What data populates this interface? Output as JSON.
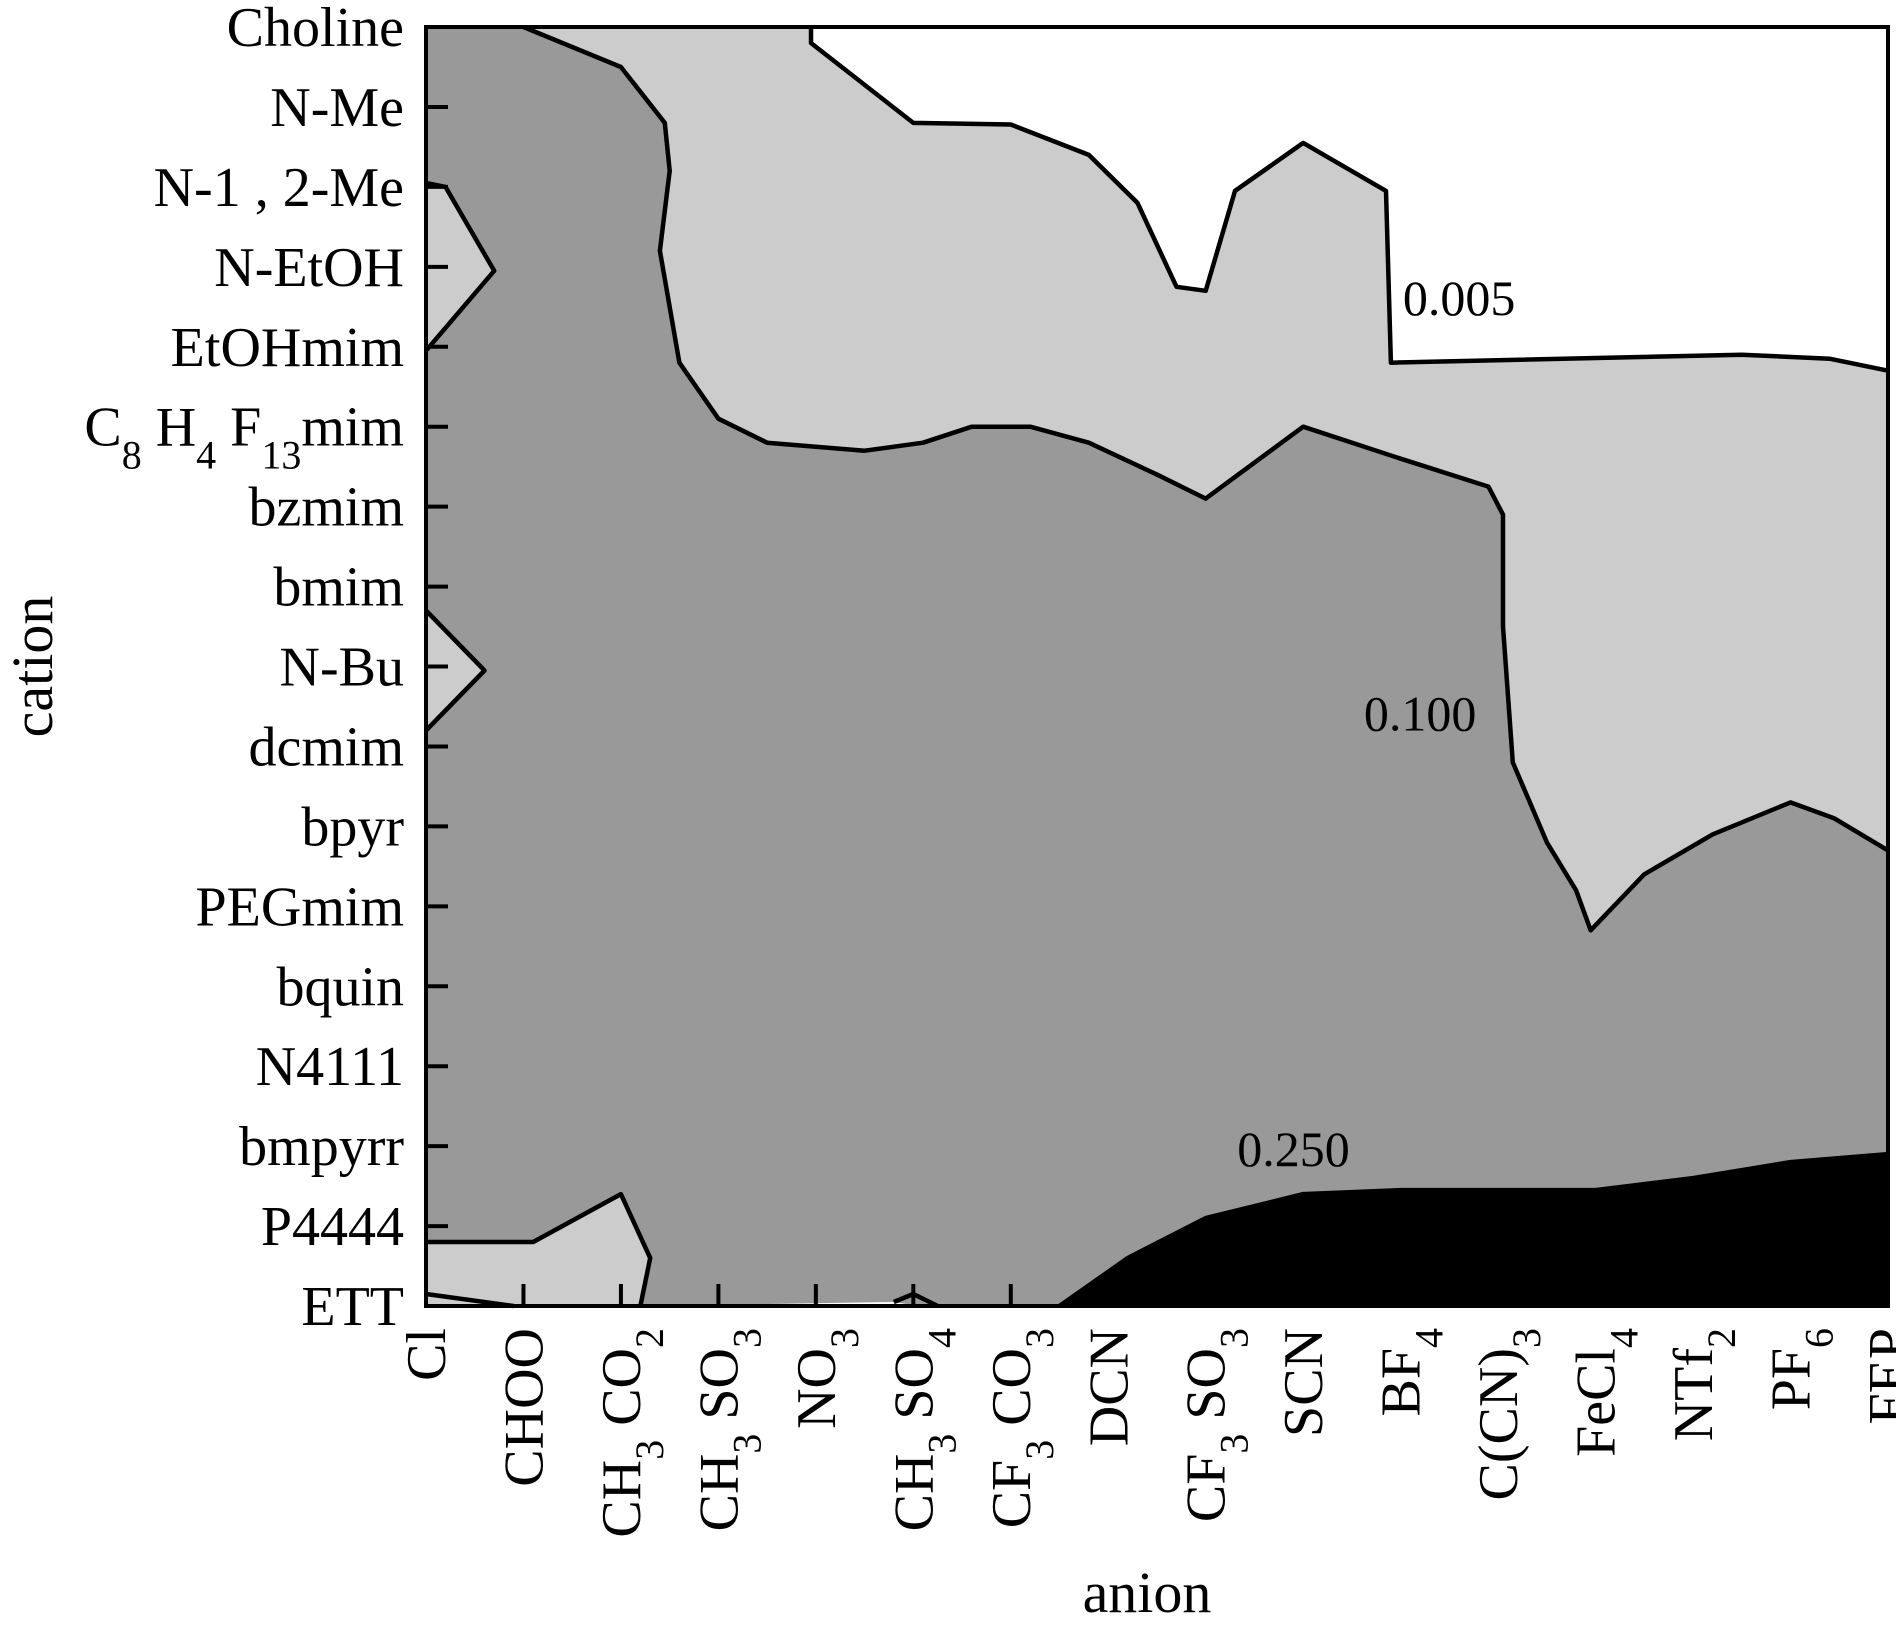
{
  "chart_data": {
    "type": "contour",
    "xlabel": "anion",
    "ylabel": "cation",
    "x_categories": [
      {
        "label": "Cl"
      },
      {
        "label": "CHOO"
      },
      {
        "label": "CH",
        "sub": [
          [
            "3",
            " CO"
          ],
          [
            "2",
            ""
          ]
        ]
      },
      {
        "label": "CH",
        "sub": [
          [
            "3",
            " SO"
          ],
          [
            "3",
            ""
          ]
        ]
      },
      {
        "label": "NO",
        "sub": [
          [
            "3",
            ""
          ]
        ]
      },
      {
        "label": "CH",
        "sub": [
          [
            "3",
            " SO"
          ],
          [
            "4",
            ""
          ]
        ]
      },
      {
        "label": "CF",
        "sub": [
          [
            "3",
            " CO"
          ],
          [
            "3",
            ""
          ]
        ]
      },
      {
        "label": "DCN"
      },
      {
        "label": "CF",
        "sub": [
          [
            "3",
            " SO"
          ],
          [
            "3",
            ""
          ]
        ]
      },
      {
        "label": "SCN"
      },
      {
        "label": "BF",
        "sub": [
          [
            "4",
            ""
          ]
        ]
      },
      {
        "label": "C(CN)",
        "sub": [
          [
            "3",
            ""
          ]
        ]
      },
      {
        "label": "FeCl",
        "sub": [
          [
            "4",
            ""
          ]
        ]
      },
      {
        "label": "NTf",
        "sub": [
          [
            "2",
            ""
          ]
        ]
      },
      {
        "label": "PF",
        "sub": [
          [
            "6",
            ""
          ]
        ]
      },
      {
        "label": "FEP"
      }
    ],
    "y_categories": [
      {
        "label": "Choline"
      },
      {
        "label": "N-Me"
      },
      {
        "label": "N-1 , 2-Me"
      },
      {
        "label": "N-EtOH"
      },
      {
        "label": "EtOHmim"
      },
      {
        "label": "C",
        "sub": [
          [
            "8",
            " H"
          ],
          [
            "4",
            " F"
          ],
          [
            "13",
            "mim"
          ]
        ]
      },
      {
        "label": "bzmim"
      },
      {
        "label": "bmim"
      },
      {
        "label": "N-Bu"
      },
      {
        "label": "dcmim"
      },
      {
        "label": "bpyr"
      },
      {
        "label": "PEGmim"
      },
      {
        "label": "bquin"
      },
      {
        "label": "N4111"
      },
      {
        "label": "bmpyrr"
      },
      {
        "label": "P4444"
      },
      {
        "label": "ETT"
      }
    ],
    "contour_levels": [
      "0.005",
      "0.100",
      "0.250"
    ],
    "colors": {
      "below_0.005": "#ffffff",
      "0.005_to_0.100": "#cccccc",
      "0.100_to_0.250": "#999999",
      "above_0.250": "#000000",
      "lines": "#000000"
    },
    "regions": [
      {
        "level": "0.100_to_0.250",
        "fill": "#999999",
        "path": [
          [
            0,
            0
          ],
          [
            1.0,
            0
          ],
          [
            1.3,
            0.15
          ],
          [
            2.0,
            0.5
          ],
          [
            2.45,
            1.2
          ],
          [
            2.5,
            1.8
          ],
          [
            2.4,
            2.8
          ],
          [
            2.6,
            4.2
          ],
          [
            3.0,
            4.9
          ],
          [
            3.5,
            5.2
          ],
          [
            4.5,
            5.3
          ],
          [
            5.1,
            5.2
          ],
          [
            5.6,
            5.0
          ],
          [
            6.2,
            5.0
          ],
          [
            6.8,
            5.2
          ],
          [
            7.5,
            5.6
          ],
          [
            8.0,
            5.9
          ],
          [
            9.0,
            5.0
          ],
          [
            10.0,
            5.4
          ],
          [
            10.9,
            5.75
          ],
          [
            11.05,
            6.1
          ],
          [
            11.05,
            7.5
          ],
          [
            11.15,
            9.2
          ],
          [
            11.5,
            10.2
          ],
          [
            11.8,
            10.8
          ],
          [
            11.95,
            11.3
          ],
          [
            12.5,
            10.6
          ],
          [
            13.2,
            10.1
          ],
          [
            14.0,
            9.7
          ],
          [
            14.45,
            9.9
          ],
          [
            15.0,
            10.3
          ],
          [
            15.0,
            16.0
          ],
          [
            6.5,
            16.0
          ],
          [
            5.05,
            16.0
          ],
          [
            4.8,
            15.95
          ],
          [
            2.2,
            16.0
          ],
          [
            2.3,
            15.4
          ],
          [
            2.0,
            14.6
          ],
          [
            1.1,
            15.2
          ],
          [
            0,
            15.2
          ],
          [
            0,
            8.8
          ],
          [
            0.6,
            8.05
          ],
          [
            0,
            7.3
          ],
          [
            0,
            4.05
          ],
          [
            0.7,
            3.05
          ],
          [
            0.2,
            2.0
          ],
          [
            0,
            1.95
          ]
        ]
      },
      {
        "level": "0.005_to_0.100",
        "fill": "#cccccc",
        "path": [
          [
            1.0,
            0
          ],
          [
            3.95,
            0
          ],
          [
            3.95,
            0.2
          ],
          [
            5.0,
            1.2
          ],
          [
            6.0,
            1.22
          ],
          [
            6.8,
            1.6
          ],
          [
            7.3,
            2.2
          ],
          [
            7.7,
            3.25
          ],
          [
            8.0,
            3.3
          ],
          [
            8.3,
            2.05
          ],
          [
            9.0,
            1.45
          ],
          [
            9.85,
            2.05
          ],
          [
            9.9,
            4.2
          ],
          [
            13.5,
            4.1
          ],
          [
            14.4,
            4.15
          ],
          [
            15.0,
            4.3
          ],
          [
            15.0,
            10.3
          ],
          [
            14.45,
            9.9
          ],
          [
            14.0,
            9.7
          ],
          [
            13.2,
            10.1
          ],
          [
            12.5,
            10.6
          ],
          [
            11.95,
            11.3
          ],
          [
            11.8,
            10.8
          ],
          [
            11.5,
            10.2
          ],
          [
            11.15,
            9.2
          ],
          [
            11.05,
            7.5
          ],
          [
            11.05,
            6.1
          ],
          [
            10.9,
            5.75
          ],
          [
            10.0,
            5.4
          ],
          [
            9.0,
            5.0
          ],
          [
            8.0,
            5.9
          ],
          [
            7.5,
            5.6
          ],
          [
            6.8,
            5.2
          ],
          [
            6.2,
            5.0
          ],
          [
            5.6,
            5.0
          ],
          [
            5.1,
            5.2
          ],
          [
            4.5,
            5.3
          ],
          [
            3.5,
            5.2
          ],
          [
            3.0,
            4.9
          ],
          [
            2.6,
            4.2
          ],
          [
            2.4,
            2.8
          ],
          [
            2.5,
            1.8
          ],
          [
            2.45,
            1.2
          ],
          [
            2.0,
            0.5
          ],
          [
            1.3,
            0.15
          ]
        ]
      },
      {
        "level": "0.005_to_0.100",
        "fill": "#cccccc",
        "path": [
          [
            0,
            1.95
          ],
          [
            0.2,
            2.0
          ],
          [
            0.7,
            3.05
          ],
          [
            0,
            4.05
          ]
        ]
      },
      {
        "level": "0.005_to_0.100",
        "fill": "#cccccc",
        "path": [
          [
            0,
            7.3
          ],
          [
            0.6,
            8.05
          ],
          [
            0,
            8.8
          ]
        ]
      },
      {
        "level": "0.005_to_0.100",
        "fill": "#cccccc",
        "path": [
          [
            0,
            15.2
          ],
          [
            1.1,
            15.2
          ],
          [
            2.0,
            14.6
          ],
          [
            2.3,
            15.4
          ],
          [
            2.2,
            16.0
          ],
          [
            0,
            16.0
          ]
        ]
      },
      {
        "level": "above_0.250",
        "fill": "#000000",
        "path": [
          [
            6.5,
            16.0
          ],
          [
            7.2,
            15.4
          ],
          [
            8.0,
            14.9
          ],
          [
            9.0,
            14.6
          ],
          [
            10.0,
            14.55
          ],
          [
            11.0,
            14.55
          ],
          [
            12.0,
            14.55
          ],
          [
            13.0,
            14.4
          ],
          [
            14.0,
            14.2
          ],
          [
            15.0,
            14.1
          ],
          [
            15.0,
            16.0
          ]
        ]
      }
    ],
    "contour_lines": [
      {
        "level": "0.005",
        "points": [
          [
            3.95,
            0
          ],
          [
            3.95,
            0.2
          ],
          [
            5.0,
            1.2
          ],
          [
            6.0,
            1.22
          ],
          [
            6.8,
            1.6
          ],
          [
            7.3,
            2.2
          ],
          [
            7.7,
            3.25
          ],
          [
            8.0,
            3.3
          ],
          [
            8.3,
            2.05
          ],
          [
            9.0,
            1.45
          ],
          [
            9.85,
            2.05
          ],
          [
            9.9,
            4.2
          ],
          [
            13.5,
            4.1
          ],
          [
            14.4,
            4.15
          ],
          [
            15.0,
            4.3
          ]
        ]
      },
      {
        "level": "0.100",
        "points": [
          [
            1.0,
            0
          ],
          [
            1.3,
            0.15
          ],
          [
            2.0,
            0.5
          ],
          [
            2.45,
            1.2
          ],
          [
            2.5,
            1.8
          ],
          [
            2.4,
            2.8
          ],
          [
            2.6,
            4.2
          ],
          [
            3.0,
            4.9
          ],
          [
            3.5,
            5.2
          ],
          [
            4.5,
            5.3
          ],
          [
            5.1,
            5.2
          ],
          [
            5.6,
            5.0
          ],
          [
            6.2,
            5.0
          ],
          [
            6.8,
            5.2
          ],
          [
            7.5,
            5.6
          ],
          [
            8.0,
            5.9
          ],
          [
            9.0,
            5.0
          ],
          [
            10.0,
            5.4
          ],
          [
            10.9,
            5.75
          ],
          [
            11.05,
            6.1
          ],
          [
            11.05,
            7.5
          ],
          [
            11.15,
            9.2
          ],
          [
            11.5,
            10.2
          ],
          [
            11.8,
            10.8
          ],
          [
            11.95,
            11.3
          ],
          [
            12.5,
            10.6
          ],
          [
            13.2,
            10.1
          ],
          [
            14.0,
            9.7
          ],
          [
            14.45,
            9.9
          ],
          [
            15.0,
            10.3
          ]
        ]
      },
      {
        "level": "0.100",
        "points": [
          [
            0,
            1.95
          ],
          [
            0.2,
            2.0
          ],
          [
            0.7,
            3.05
          ],
          [
            0,
            4.05
          ]
        ]
      },
      {
        "level": "0.100",
        "points": [
          [
            0,
            7.3
          ],
          [
            0.6,
            8.05
          ],
          [
            0,
            8.8
          ]
        ]
      },
      {
        "level": "0.100",
        "points": [
          [
            0,
            15.2
          ],
          [
            1.1,
            15.2
          ],
          [
            2.0,
            14.6
          ],
          [
            2.3,
            15.4
          ],
          [
            2.2,
            16.0
          ]
        ]
      },
      {
        "level": "0.100",
        "points": [
          [
            0,
            15.85
          ],
          [
            0.9,
            16.0
          ]
        ]
      },
      {
        "level": "0.100",
        "points": [
          [
            4.8,
            15.95
          ],
          [
            5.0,
            15.85
          ],
          [
            5.25,
            16.0
          ]
        ]
      },
      {
        "level": "0.250",
        "points": [
          [
            6.5,
            16.0
          ],
          [
            7.2,
            15.4
          ],
          [
            8.0,
            14.9
          ],
          [
            9.0,
            14.6
          ],
          [
            10.0,
            14.55
          ],
          [
            11.0,
            14.55
          ],
          [
            12.0,
            14.55
          ],
          [
            13.0,
            14.4
          ],
          [
            14.0,
            14.2
          ],
          [
            15.0,
            14.1
          ]
        ]
      }
    ],
    "contour_labels": [
      {
        "text": "0.005",
        "x": 10.6,
        "y": 3.6
      },
      {
        "text": "0.100",
        "x": 10.2,
        "y": 8.8
      },
      {
        "text": "0.250",
        "x": 8.9,
        "y": 14.25
      }
    ],
    "grid": false,
    "legend": "none"
  }
}
